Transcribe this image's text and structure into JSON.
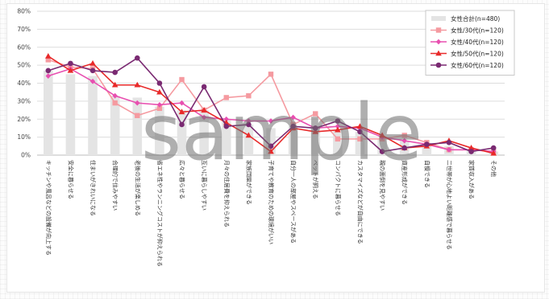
{
  "chart_data": {
    "type": "bar+line",
    "categories": [
      "キッチンや風呂などの設備が向上する",
      "安全に暮らせる",
      "住まいがきれいになる",
      "合理的で住みやすい",
      "老後の生活が楽しめる",
      "省エネ性やランニングコストが抑えられる",
      "広々と暮らせる",
      "互いに暮らしやすい",
      "月々の住居費を抑えられる",
      "家族団欒ができる",
      "子育てや教育のための環境がいい",
      "自分一人の部屋やスペースがある",
      "ペットが飼える",
      "コンパクトに暮らせる",
      "カスタマイズなどが自由にできる",
      "親の面倒を見やすい",
      "資産形成ができる",
      "自慢できる",
      "二世帯が心地よい距離感で暮らせる",
      "家賃収入がある",
      "その他"
    ],
    "ylim": [
      0,
      80
    ],
    "yticks": [
      "0%",
      "10%",
      "20%",
      "30%",
      "40%",
      "50%",
      "60%",
      "70%",
      "80%"
    ],
    "grid": true,
    "legend_position": "top-right",
    "series": [
      {
        "name": "女性合計(n=480)",
        "kind": "bar",
        "color": "#e4e4e4",
        "values": [
          47,
          45,
          44,
          33,
          32,
          27,
          25,
          25,
          20,
          17,
          15,
          16,
          15,
          14,
          13,
          9,
          8,
          6,
          5,
          3,
          2
        ]
      },
      {
        "name": "女性/30代(n=120)",
        "kind": "line",
        "color": "#f59aa0",
        "marker": "square",
        "values": [
          53,
          49,
          48,
          29,
          22,
          26,
          42,
          25,
          32,
          33,
          45,
          17,
          23,
          9,
          9,
          9,
          11,
          7,
          3,
          3,
          2
        ]
      },
      {
        "name": "女性/40代(n=120)",
        "kind": "line",
        "color": "#e84fb0",
        "marker": "diamond",
        "values": [
          44,
          48,
          41,
          33,
          29,
          28,
          29,
          21,
          20,
          19,
          19,
          21,
          15,
          16,
          15,
          10,
          8,
          6,
          3,
          3,
          2
        ]
      },
      {
        "name": "女性/50代(n=120)",
        "kind": "line",
        "color": "#e82a2a",
        "marker": "triangle",
        "values": [
          55,
          47,
          51,
          39,
          39,
          35,
          24,
          25,
          18,
          11,
          2,
          15,
          13,
          14,
          16,
          11,
          4,
          5,
          8,
          4,
          1
        ]
      },
      {
        "name": "女性/60代(n=120)",
        "kind": "line",
        "color": "#7a2a72",
        "marker": "circle",
        "values": [
          47,
          51,
          47,
          46,
          54,
          40,
          17,
          38,
          16,
          17,
          5,
          16,
          15,
          19,
          13,
          2,
          4,
          6,
          7,
          2,
          4
        ]
      }
    ]
  },
  "watermark": "sample"
}
